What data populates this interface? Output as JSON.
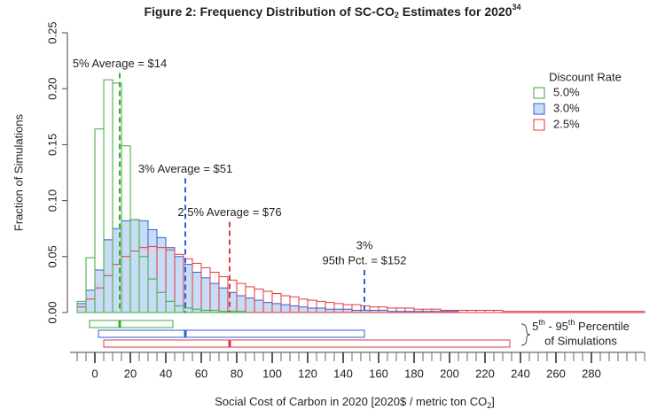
{
  "chart_data": {
    "type": "histogram",
    "title": [
      "Figure 2: Frequency Distribution of SC-CO",
      "2",
      " Estimates for 2020",
      "34"
    ],
    "x_label": [
      "Social Cost of Carbon in 2020 [2020$ / metric ton CO",
      "2",
      "]"
    ],
    "y_label": "Fraction of Simulations",
    "legend_title": "Discount Rate",
    "legend_position": "upper right",
    "bins": [
      -10,
      -5,
      0,
      5,
      10,
      15,
      20,
      25,
      30,
      35,
      40,
      45,
      50,
      55,
      60,
      65,
      70,
      75,
      80,
      85,
      90,
      95,
      100,
      105,
      110,
      115,
      120,
      125,
      130,
      135,
      140,
      145,
      150,
      155,
      160,
      165,
      170,
      175,
      180,
      185,
      190,
      195,
      200,
      205,
      210,
      215,
      220,
      225,
      230,
      235,
      240,
      245,
      250,
      255,
      260,
      265,
      270,
      275,
      280,
      285,
      290,
      295,
      300,
      305,
      310
    ],
    "series": [
      {
        "name": "3.0%",
        "color": "#2f5fd8",
        "fill": "#c9dcf6",
        "values": [
          0.008,
          0.02,
          0.038,
          0.065,
          0.075,
          0.082,
          0.083,
          0.082,
          0.074,
          0.067,
          0.058,
          0.05,
          0.043,
          0.036,
          0.031,
          0.026,
          0.022,
          0.018,
          0.015,
          0.013,
          0.011,
          0.009,
          0.008,
          0.007,
          0.006,
          0.005,
          0.004,
          0.004,
          0.003,
          0.003,
          0.003,
          0.002,
          0.002,
          0.002,
          0.002,
          0.001,
          0.001,
          0.001,
          0.001,
          0.001,
          0.001,
          0.001,
          0.001,
          0,
          0,
          0,
          0,
          0,
          0,
          0,
          0,
          0,
          0,
          0,
          0,
          0,
          0,
          0,
          0,
          0,
          0,
          0,
          0,
          0
        ],
        "p5": 2,
        "p95": 152,
        "mean": 51
      },
      {
        "name": "2.5%",
        "color": "#e0393b",
        "fill": "none",
        "values": [
          0.005,
          0.012,
          0.022,
          0.033,
          0.043,
          0.05,
          0.055,
          0.058,
          0.059,
          0.058,
          0.056,
          0.052,
          0.048,
          0.044,
          0.04,
          0.036,
          0.032,
          0.029,
          0.026,
          0.023,
          0.021,
          0.019,
          0.017,
          0.015,
          0.014,
          0.012,
          0.011,
          0.01,
          0.009,
          0.008,
          0.007,
          0.007,
          0.006,
          0.005,
          0.005,
          0.004,
          0.004,
          0.004,
          0.003,
          0.003,
          0.003,
          0.002,
          0.002,
          0.002,
          0.002,
          0.002,
          0.002,
          0.002,
          0.001,
          0.001,
          0.001,
          0.001,
          0.001,
          0.001,
          0.001,
          0.001,
          0.001,
          0.001,
          0.001,
          0.001,
          0.001,
          0.001,
          0.001,
          0.001
        ],
        "p5": 5,
        "p95": 234,
        "mean": 76
      },
      {
        "name": "5.0%",
        "color": "#3aaa3a",
        "fill": "none",
        "values": [
          0.01,
          0.049,
          0.164,
          0.208,
          0.205,
          0.149,
          0.083,
          0.05,
          0.03,
          0.018,
          0.01,
          0.006,
          0.004,
          0.003,
          0.002,
          0.002,
          0.001,
          0.001,
          0.001,
          0,
          0,
          0,
          0,
          0,
          0,
          0,
          0,
          0,
          0,
          0,
          0,
          0,
          0,
          0,
          0,
          0,
          0,
          0,
          0,
          0,
          0,
          0,
          0,
          0,
          0,
          0,
          0,
          0,
          0,
          0,
          0,
          0,
          0,
          0,
          0,
          0,
          0,
          0,
          0,
          0,
          0,
          0,
          0,
          0
        ],
        "p5": -3,
        "p95": 44,
        "mean": 14
      }
    ],
    "legend_order": [
      2,
      0,
      1
    ],
    "reference_lines": [
      {
        "x": 14,
        "y_top": 0.214,
        "color": "#3aaa3a",
        "label": [
          "5% Average = $14"
        ]
      },
      {
        "x": 51,
        "y_top": 0.12,
        "color": "#2f5fd8",
        "label": [
          "3% Average = $51"
        ]
      },
      {
        "x": 76,
        "y_top": 0.081,
        "color": "#e0393b",
        "label": [
          "2.5% Average = $76"
        ]
      },
      {
        "x": 152,
        "y_top": 0.038,
        "color": "#2f5fd8",
        "label": [
          "3%",
          "95th Pct. = $152"
        ]
      }
    ],
    "percentile_label": {
      "line1": [
        "5",
        "th",
        " - 95",
        "th",
        " Percentile"
      ],
      "line2": "of Simulations"
    },
    "xlim": [
      -14,
      310
    ],
    "xticks": [
      0,
      20,
      40,
      60,
      80,
      100,
      120,
      140,
      160,
      180,
      200,
      220,
      240,
      260,
      280
    ],
    "xminor_step": 5,
    "ylim": [
      0,
      0.25
    ],
    "yticks": [
      {
        "value": 0,
        "label": "0.00"
      },
      {
        "value": 0.05,
        "label": "0.05"
      },
      {
        "value": 0.1,
        "label": "0.10"
      },
      {
        "value": 0.15,
        "label": "0.15"
      },
      {
        "value": 0.2,
        "label": "0.20"
      },
      {
        "value": 0.25,
        "label": "0.25"
      }
    ]
  }
}
